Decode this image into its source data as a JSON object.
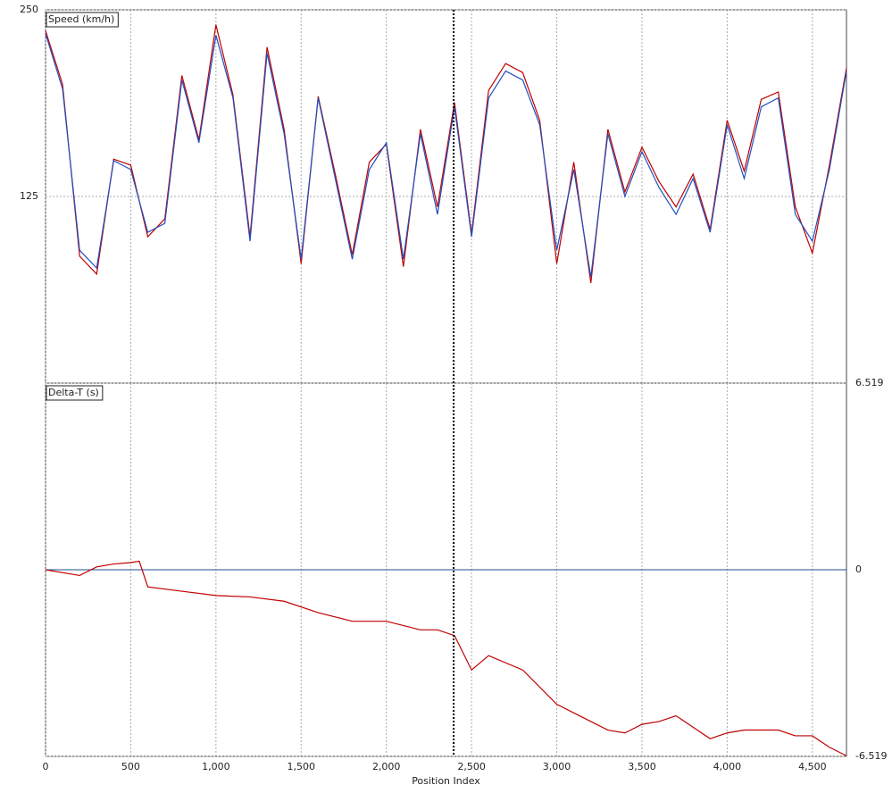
{
  "chart_data": [
    {
      "type": "line",
      "title": "Speed (km/h)",
      "x": [
        0,
        100,
        200,
        300,
        400,
        500,
        600,
        700,
        800,
        900,
        1000,
        1100,
        1200,
        1300,
        1400,
        1500,
        1600,
        1700,
        1800,
        1900,
        2000,
        2100,
        2200,
        2300,
        2400,
        2500,
        2600,
        2700,
        2800,
        2900,
        3000,
        3100,
        3200,
        3300,
        3400,
        3500,
        3600,
        3700,
        3800,
        3900,
        4000,
        4100,
        4200,
        4300,
        4400,
        4500,
        4600,
        4700
      ],
      "series": [
        {
          "color": "#c00000",
          "values": [
            236,
            200,
            85,
            73,
            150,
            146,
            98,
            110,
            206,
            163,
            240,
            193,
            98,
            225,
            170,
            80,
            192,
            140,
            86,
            148,
            160,
            78,
            170,
            118,
            188,
            100,
            196,
            214,
            208,
            176,
            80,
            148,
            67,
            170,
            128,
            158,
            135,
            118,
            140,
            103,
            176,
            142,
            190,
            195,
            118,
            87,
            146,
            211
          ]
        },
        {
          "color": "#1f4fbf",
          "values": [
            234,
            197,
            89,
            77,
            149,
            143,
            101,
            107,
            203,
            161,
            233,
            191,
            95,
            221,
            167,
            83,
            191,
            137,
            83,
            143,
            161,
            83,
            167,
            113,
            185,
            98,
            191,
            209,
            203,
            173,
            89,
            143,
            71,
            167,
            125,
            155,
            131,
            113,
            137,
            101,
            173,
            137,
            185,
            191,
            113,
            95,
            143,
            209
          ]
        }
      ],
      "xlim": [
        0,
        4700
      ],
      "ylim": [
        0,
        250
      ],
      "yticks": [
        125,
        250
      ],
      "xticks": [
        0,
        500,
        1000,
        1500,
        2000,
        2500,
        3000,
        3500,
        4000,
        4500
      ],
      "cursor_x": 2395,
      "ytick_side": "left"
    },
    {
      "type": "line",
      "title": "Delta-T (s)",
      "x_label": "Position Index",
      "x": [
        0,
        200,
        300,
        400,
        500,
        550,
        600,
        800,
        1000,
        1200,
        1400,
        1600,
        1800,
        2000,
        2200,
        2300,
        2400,
        2500,
        2600,
        2800,
        3000,
        3200,
        3300,
        3400,
        3500,
        3600,
        3700,
        3800,
        3900,
        4000,
        4100,
        4300,
        4400,
        4500,
        4600,
        4700
      ],
      "series": [
        {
          "color": "#c00000",
          "values": [
            0,
            -0.2,
            0.1,
            0.2,
            0.25,
            0.3,
            -0.6,
            -0.75,
            -0.9,
            -0.95,
            -1.1,
            -1.5,
            -1.8,
            -1.8,
            -2.1,
            -2.1,
            -2.3,
            -3.5,
            -3.0,
            -3.5,
            -4.7,
            -5.3,
            -5.6,
            -5.7,
            -5.4,
            -5.3,
            -5.1,
            -5.5,
            -5.9,
            -5.7,
            -5.6,
            -5.6,
            -5.8,
            -5.8,
            -6.2,
            -6.5
          ]
        }
      ],
      "xlim": [
        0,
        4700
      ],
      "ylim": [
        -6.519,
        6.519
      ],
      "yticks": [
        -6.519,
        0,
        6.519
      ],
      "xticks": [
        0,
        500,
        {
          "value": 1000,
          "label": "1,000"
        },
        {
          "value": 1500,
          "label": "1,500"
        },
        {
          "value": 2000,
          "label": "2,000"
        },
        {
          "value": 2500,
          "label": "2,500"
        },
        {
          "value": 3000,
          "label": "3,000"
        },
        {
          "value": 3500,
          "label": "3,500"
        },
        {
          "value": 4000,
          "label": "4,000"
        },
        {
          "value": 4500,
          "label": "4,500"
        }
      ],
      "zero_line_color": "#1f4f8f",
      "ytick_side": "right"
    }
  ]
}
